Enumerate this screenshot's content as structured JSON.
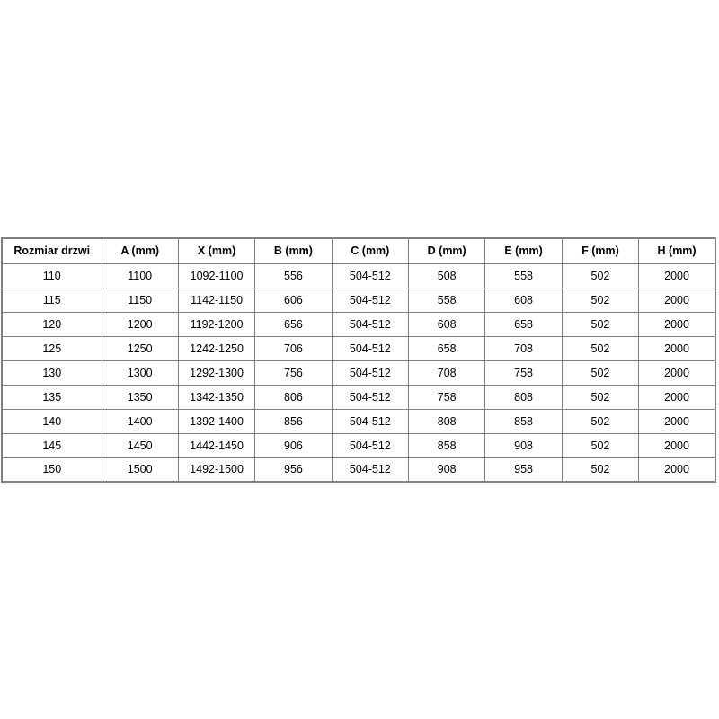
{
  "page": {
    "background_color": "#ffffff"
  },
  "table": {
    "border_color": "#7f7f7f",
    "text_color": "#000000",
    "headers": [
      "Rozmiar drzwi",
      "A (mm)",
      "X (mm)",
      "B (mm)",
      "C (mm)",
      "D (mm)",
      "E (mm)",
      "F (mm)",
      "H (mm)"
    ],
    "rows": [
      [
        "110",
        "1100",
        "1092-1100",
        "556",
        "504-512",
        "508",
        "558",
        "502",
        "2000"
      ],
      [
        "115",
        "1150",
        "1142-1150",
        "606",
        "504-512",
        "558",
        "608",
        "502",
        "2000"
      ],
      [
        "120",
        "1200",
        "1192-1200",
        "656",
        "504-512",
        "608",
        "658",
        "502",
        "2000"
      ],
      [
        "125",
        "1250",
        "1242-1250",
        "706",
        "504-512",
        "658",
        "708",
        "502",
        "2000"
      ],
      [
        "130",
        "1300",
        "1292-1300",
        "756",
        "504-512",
        "708",
        "758",
        "502",
        "2000"
      ],
      [
        "135",
        "1350",
        "1342-1350",
        "806",
        "504-512",
        "758",
        "808",
        "502",
        "2000"
      ],
      [
        "140",
        "1400",
        "1392-1400",
        "856",
        "504-512",
        "808",
        "858",
        "502",
        "2000"
      ],
      [
        "145",
        "1450",
        "1442-1450",
        "906",
        "504-512",
        "858",
        "908",
        "502",
        "2000"
      ],
      [
        "150",
        "1500",
        "1492-1500",
        "956",
        "504-512",
        "908",
        "958",
        "502",
        "2000"
      ]
    ]
  }
}
